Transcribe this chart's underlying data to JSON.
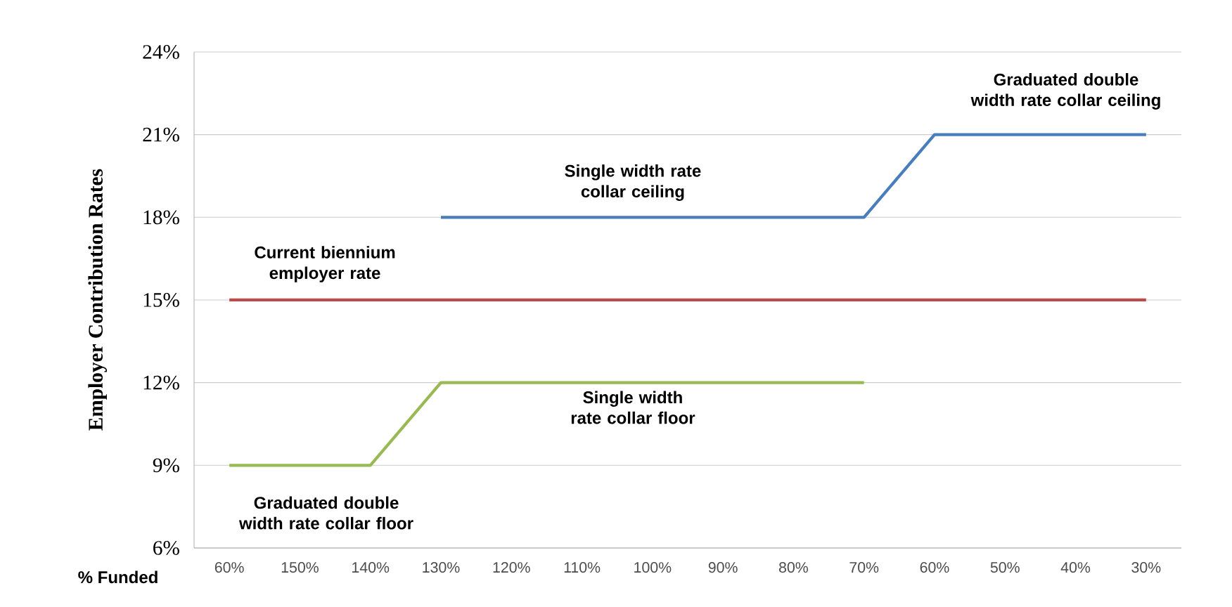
{
  "chart_data": {
    "type": "line",
    "xlabel": "% Funded",
    "ylabel": "Employer Contribution Rates",
    "categories": [
      "60%",
      "150%",
      "140%",
      "130%",
      "120%",
      "110%",
      "100%",
      "90%",
      "80%",
      "70%",
      "60%",
      "50%",
      "40%",
      "30%"
    ],
    "series": [
      {
        "color": "#4a7ebb",
        "values": [
          null,
          null,
          null,
          18,
          18,
          18,
          18,
          18,
          18,
          18,
          21,
          21,
          21,
          21
        ]
      },
      {
        "color": "#be4b48",
        "values": [
          15,
          15,
          15,
          15,
          15,
          15,
          15,
          15,
          15,
          15,
          15,
          15,
          15,
          15
        ]
      },
      {
        "color": "#98b954",
        "values": [
          9,
          9,
          9,
          12,
          12,
          12,
          12,
          12,
          12,
          12,
          null,
          null,
          null,
          null
        ]
      }
    ],
    "ylim": [
      6,
      24
    ],
    "yticks": [
      {
        "value": 6,
        "label": "6%"
      },
      {
        "value": 9,
        "label": "9%"
      },
      {
        "value": 12,
        "label": "12%"
      },
      {
        "value": 15,
        "label": "15%"
      },
      {
        "value": 18,
        "label": "18%"
      },
      {
        "value": 21,
        "label": "21%"
      },
      {
        "value": 24,
        "label": "24%"
      }
    ],
    "grid": "y",
    "marker": "none",
    "line_style": "solid",
    "annotations": [
      "Graduated double width rate collar ceiling",
      "Single width rate collar ceiling",
      "Current biennium employer rate",
      "Single width rate collar floor",
      "Graduated double width rate collar floor"
    ]
  }
}
